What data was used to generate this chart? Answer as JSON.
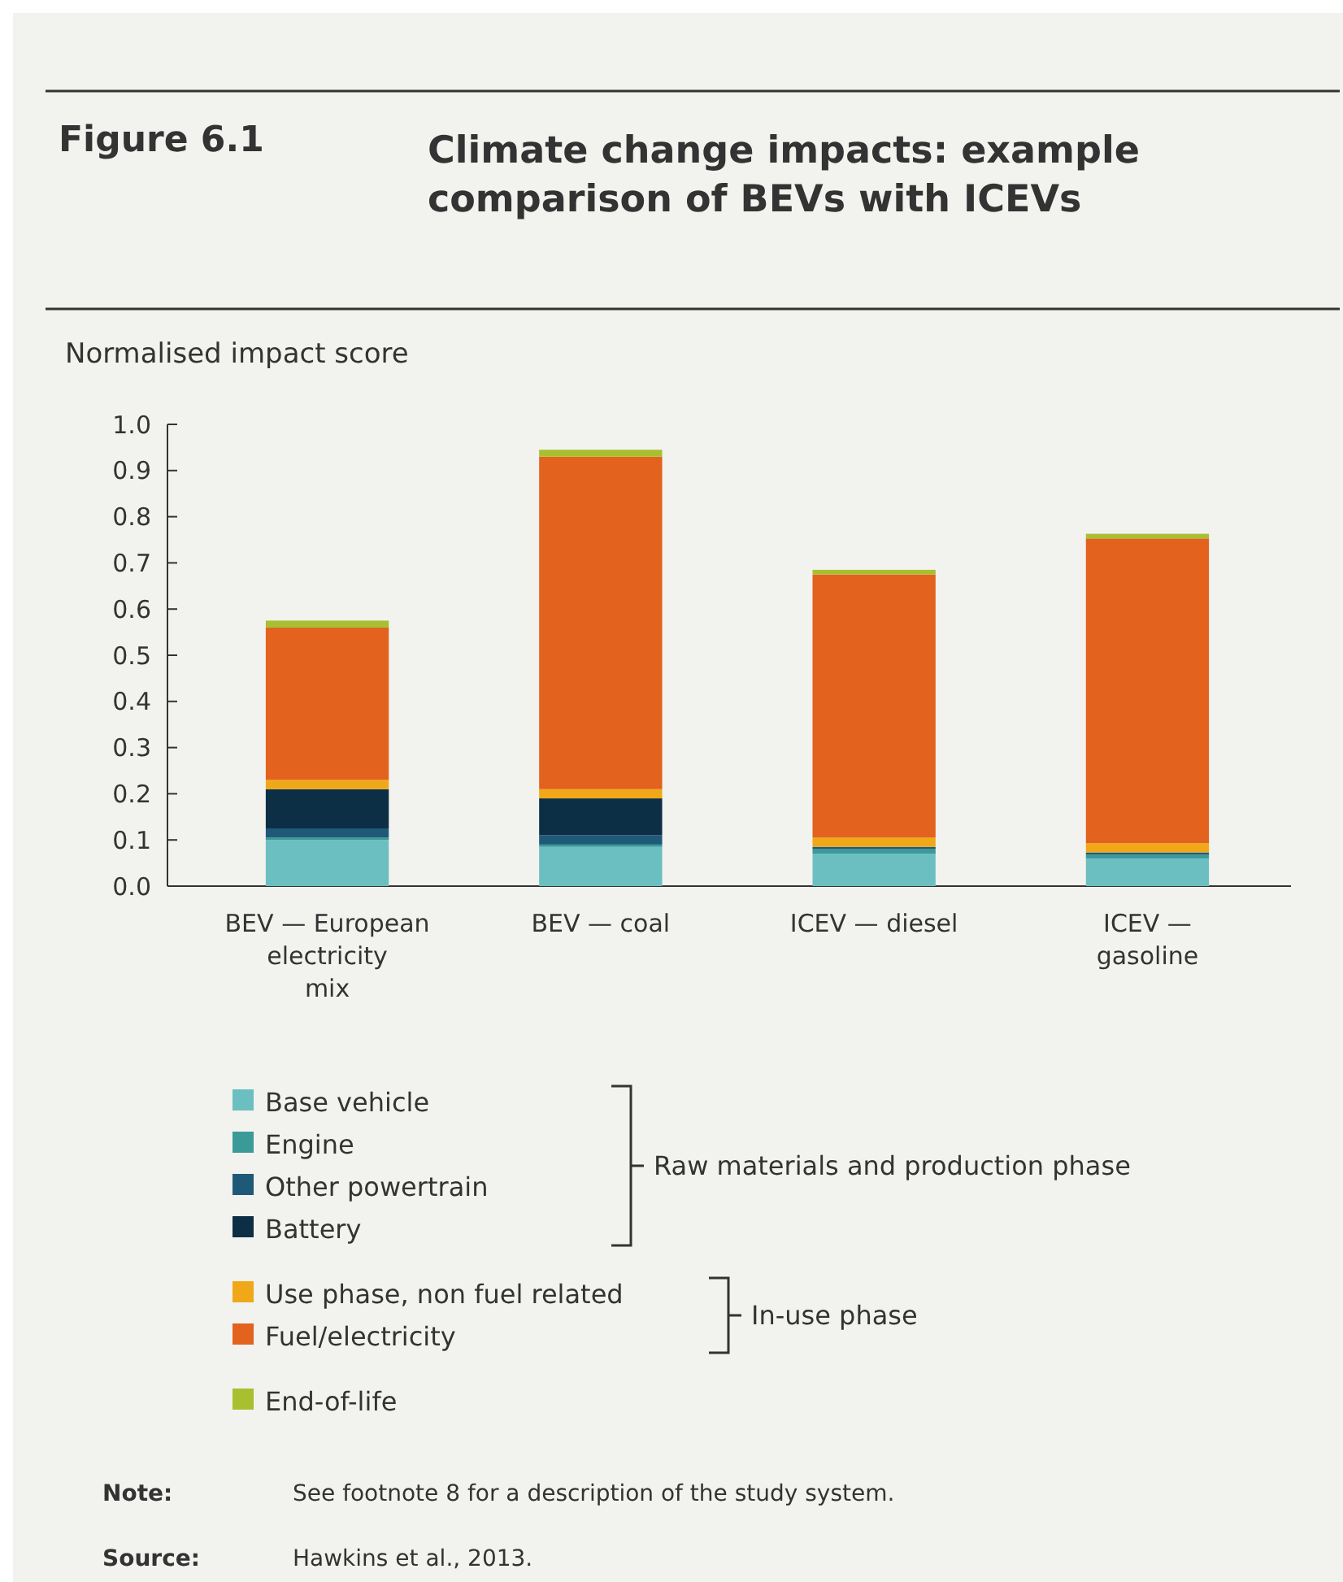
{
  "chart_data": {
    "type": "bar",
    "title": "Figure 6.1",
    "subtitle": "Climate change impacts: example comparison of BEVs with ICEVs",
    "ylabel": "Normalised impact score",
    "categories": [
      "BEV — European electricity mix",
      "BEV — coal",
      "ICEV — diesel",
      "ICEV — gasoline"
    ],
    "stacked": true,
    "series": [
      {
        "name": "Base vehicle",
        "color": "#6cbfc0",
        "values": [
          0.1,
          0.085,
          0.07,
          0.06
        ]
      },
      {
        "name": "Engine",
        "color": "#3a9a98",
        "values": [
          0.005,
          0.005,
          0.01,
          0.008
        ]
      },
      {
        "name": "Other powertrain",
        "color": "#1e5a78",
        "values": [
          0.02,
          0.02,
          0.005,
          0.005
        ]
      },
      {
        "name": "Battery",
        "color": "#0d2f45",
        "values": [
          0.085,
          0.08,
          0,
          0
        ]
      },
      {
        "name": "Use phase, non fuel related",
        "color": "#f0a818",
        "values": [
          0.02,
          0.02,
          0.02,
          0.02
        ]
      },
      {
        "name": "Fuel/electricity",
        "color": "#e2621e",
        "values": [
          0.33,
          0.72,
          0.57,
          0.66
        ]
      },
      {
        "name": "End-of-life",
        "color": "#a8c030",
        "values": [
          0.015,
          0.015,
          0.01,
          0.01
        ]
      }
    ],
    "ylim": [
      0,
      1
    ],
    "yticks": [
      {
        "value": 0,
        "label": "0.0"
      },
      0.1,
      0.2,
      0.3,
      0.4,
      0.5,
      0.6,
      0.7,
      0.8,
      0.9,
      {
        "value": 1,
        "label": "1.0"
      }
    ],
    "grid": false,
    "legend": "bottom",
    "annotations": [
      "Raw materials and production phase",
      "In-use phase",
      "Note: See footnote 8 for a description of the study system.",
      "Source: Hawkins et al., 2013."
    ]
  }
}
